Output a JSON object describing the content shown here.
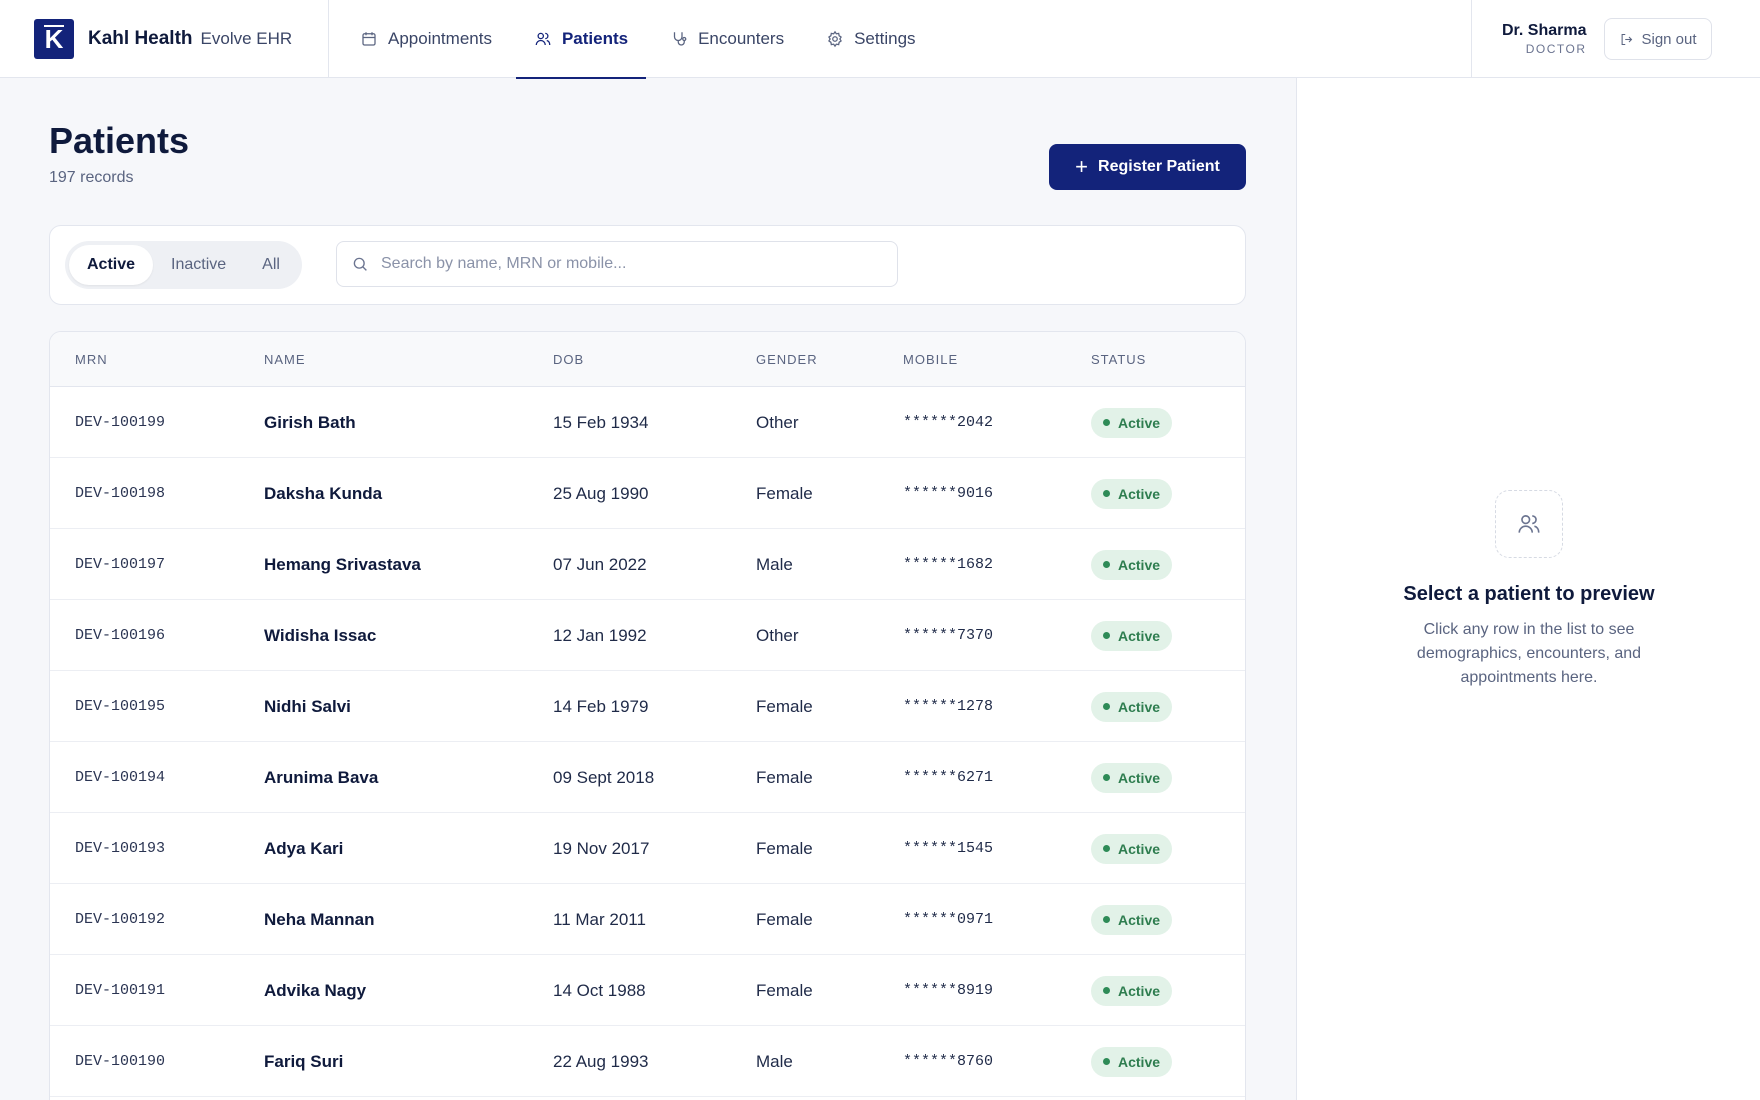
{
  "brand": {
    "logo_letter": "K",
    "name": "Kahl Health",
    "product": "Evolve EHR"
  },
  "nav": [
    {
      "label": "Appointments",
      "icon": "calendar-icon",
      "active": false
    },
    {
      "label": "Patients",
      "icon": "users-icon",
      "active": true
    },
    {
      "label": "Encounters",
      "icon": "stethoscope-icon",
      "active": false
    },
    {
      "label": "Settings",
      "icon": "gear-icon",
      "active": false
    }
  ],
  "user": {
    "name": "Dr. Sharma",
    "role": "DOCTOR",
    "signout_label": "Sign out"
  },
  "page": {
    "title": "Patients",
    "record_count": "197 records",
    "register_label": "Register Patient"
  },
  "filters": {
    "segments": [
      "Active",
      "Inactive",
      "All"
    ],
    "active_segment": "Active",
    "search_placeholder": "Search by name, MRN or mobile..."
  },
  "table": {
    "columns": [
      "MRN",
      "NAME",
      "DOB",
      "GENDER",
      "MOBILE",
      "STATUS"
    ],
    "rows": [
      {
        "mrn": "DEV-100199",
        "name": "Girish Bath",
        "dob": "15 Feb 1934",
        "gender": "Other",
        "mobile": "******2042",
        "status": "Active"
      },
      {
        "mrn": "DEV-100198",
        "name": "Daksha Kunda",
        "dob": "25 Aug 1990",
        "gender": "Female",
        "mobile": "******9016",
        "status": "Active"
      },
      {
        "mrn": "DEV-100197",
        "name": "Hemang Srivastava",
        "dob": "07 Jun 2022",
        "gender": "Male",
        "mobile": "******1682",
        "status": "Active"
      },
      {
        "mrn": "DEV-100196",
        "name": "Widisha Issac",
        "dob": "12 Jan 1992",
        "gender": "Other",
        "mobile": "******7370",
        "status": "Active"
      },
      {
        "mrn": "DEV-100195",
        "name": "Nidhi Salvi",
        "dob": "14 Feb 1979",
        "gender": "Female",
        "mobile": "******1278",
        "status": "Active"
      },
      {
        "mrn": "DEV-100194",
        "name": "Arunima Bava",
        "dob": "09 Sept 2018",
        "gender": "Female",
        "mobile": "******6271",
        "status": "Active"
      },
      {
        "mrn": "DEV-100193",
        "name": "Adya Kari",
        "dob": "19 Nov 2017",
        "gender": "Female",
        "mobile": "******1545",
        "status": "Active"
      },
      {
        "mrn": "DEV-100192",
        "name": "Neha Mannan",
        "dob": "11 Mar 2011",
        "gender": "Female",
        "mobile": "******0971",
        "status": "Active"
      },
      {
        "mrn": "DEV-100191",
        "name": "Advika Nagy",
        "dob": "14 Oct 1988",
        "gender": "Female",
        "mobile": "******8919",
        "status": "Active"
      },
      {
        "mrn": "DEV-100190",
        "name": "Fariq Suri",
        "dob": "22 Aug 1993",
        "gender": "Male",
        "mobile": "******8760",
        "status": "Active"
      }
    ]
  },
  "preview": {
    "icon": "users-icon",
    "title": "Select a patient to preview",
    "text": "Click any row in the list to see demographics, encounters, and appointments here."
  },
  "colors": {
    "primary": "#13237a",
    "active_badge_bg": "#e2f2e8",
    "active_badge_text": "#2e7d4f"
  }
}
